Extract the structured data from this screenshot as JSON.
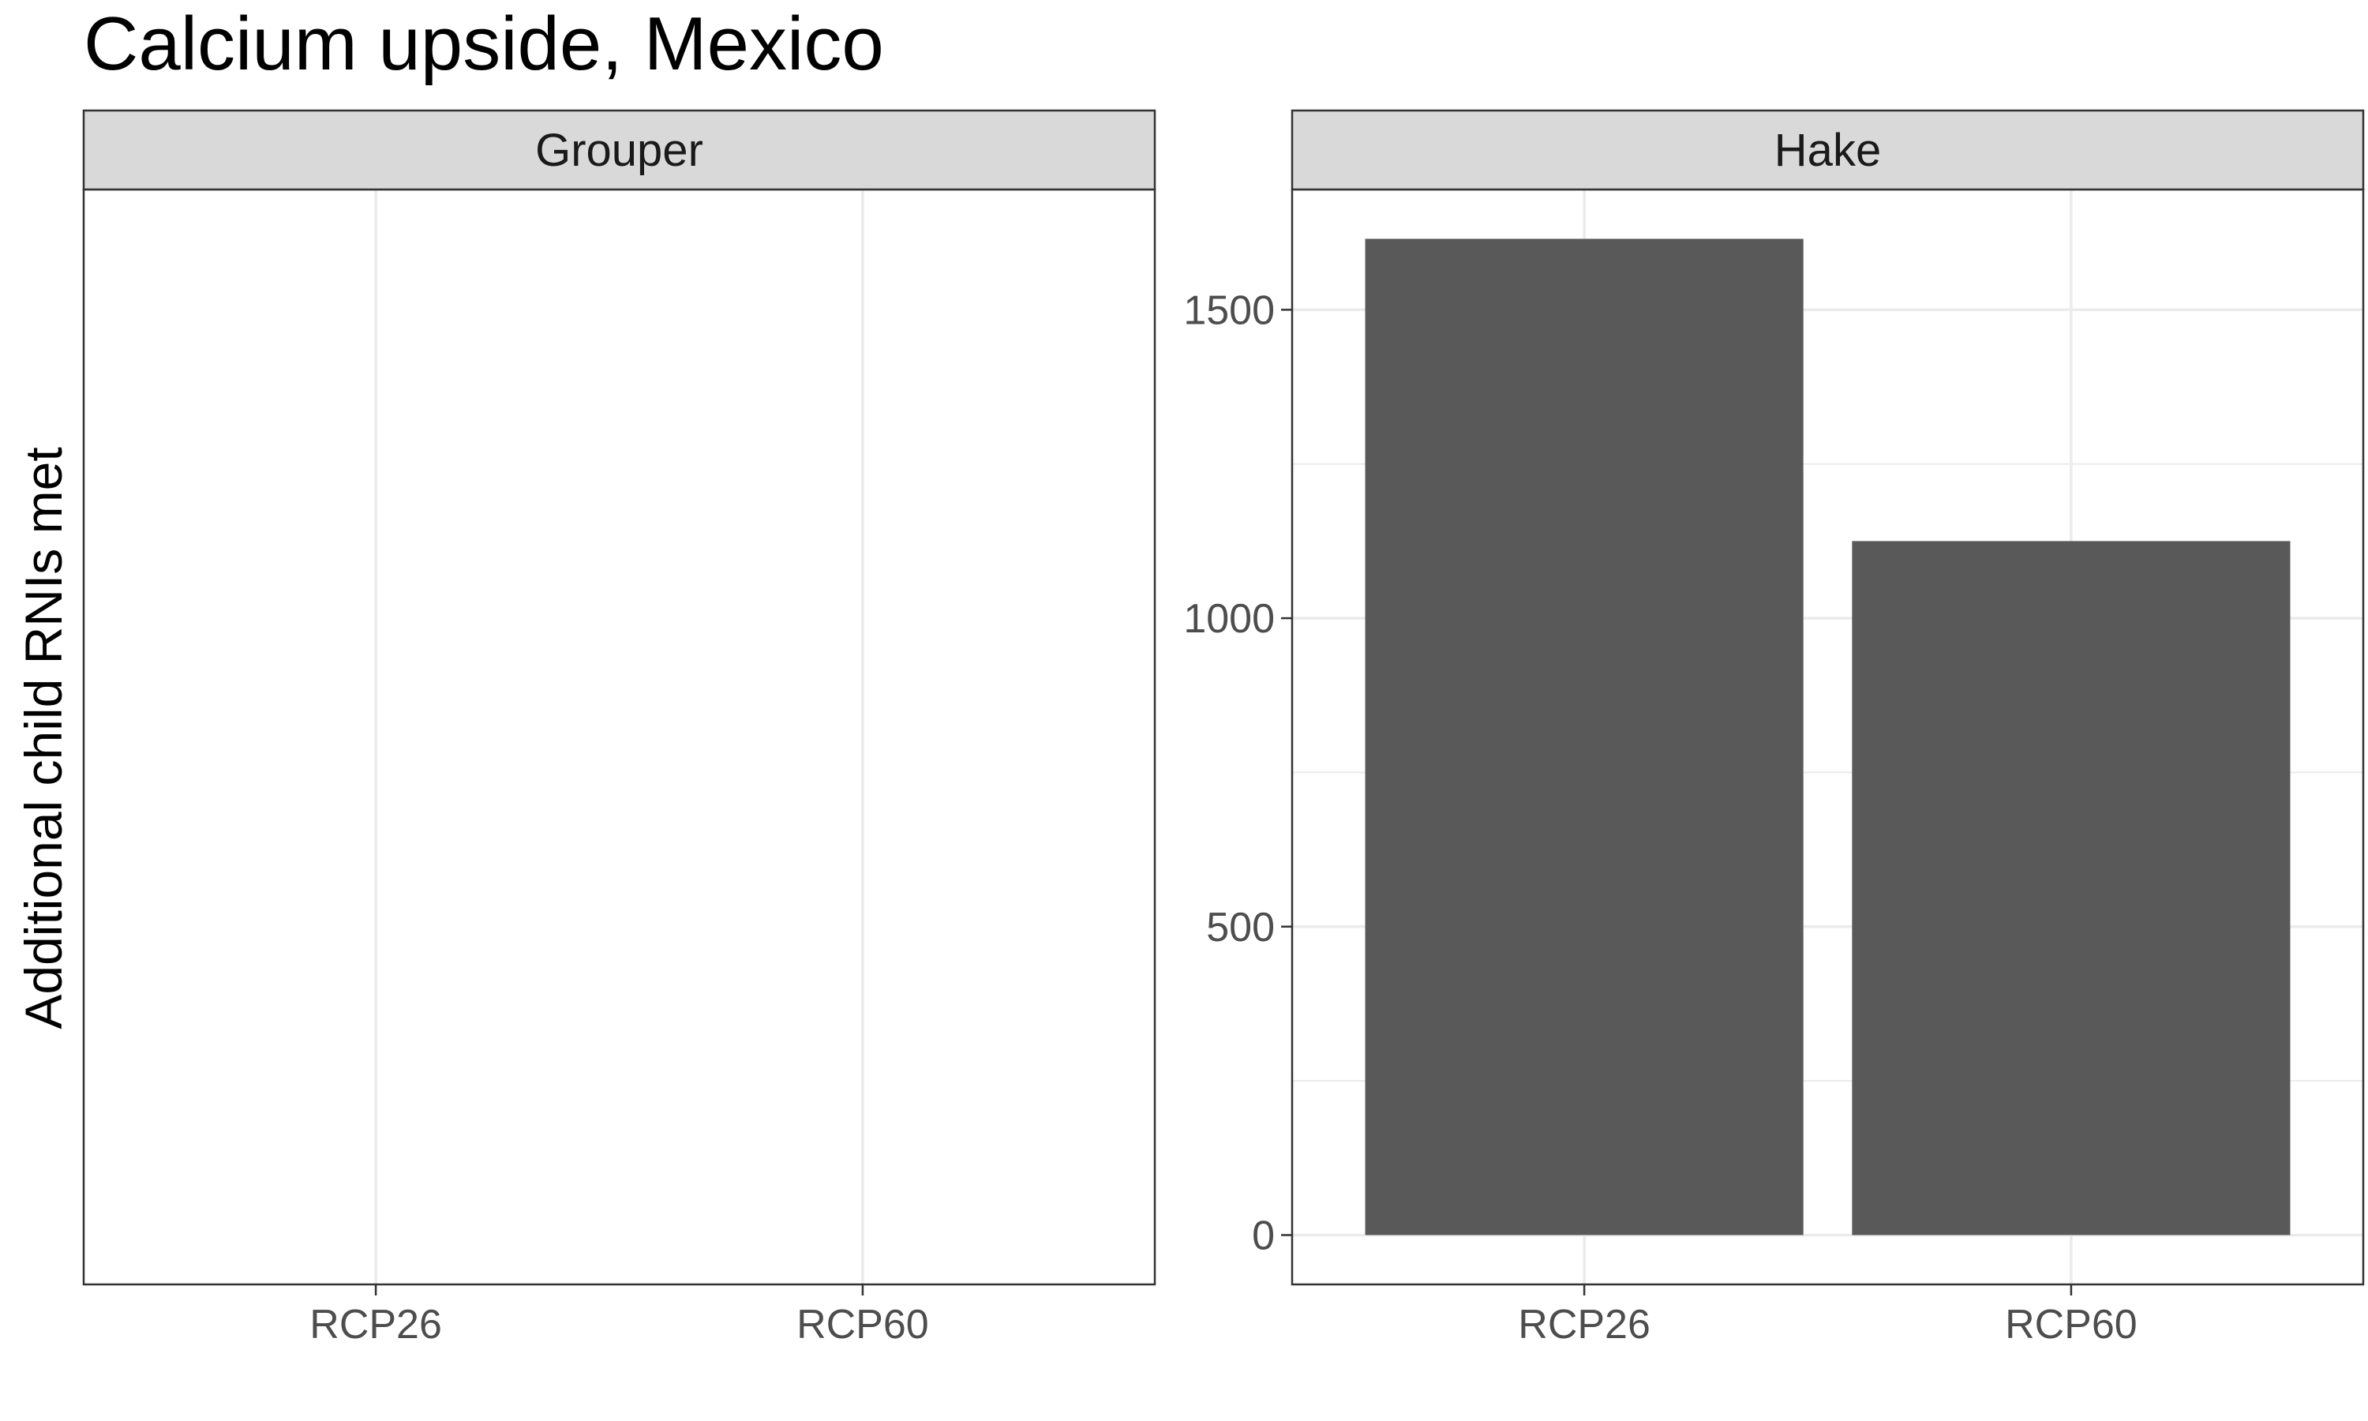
{
  "chart_data": {
    "type": "bar",
    "title": "Calcium upside, Mexico",
    "xlabel": "",
    "ylabel": "Additional child RNIs met",
    "categories": [
      "RCP26",
      "RCP60"
    ],
    "panels": [
      {
        "name": "Grouper",
        "values": [],
        "yticks": []
      },
      {
        "name": "Hake",
        "values": [
          1615,
          1125
        ],
        "yticks": [
          0,
          500,
          1000,
          1500
        ],
        "ylim": [
          -80,
          1695
        ]
      }
    ],
    "grid": true,
    "legend": "none",
    "colors": {
      "bar": "#595959",
      "grid": "#ebebeb",
      "strip": "#d9d9d9",
      "border": "#333333"
    }
  }
}
